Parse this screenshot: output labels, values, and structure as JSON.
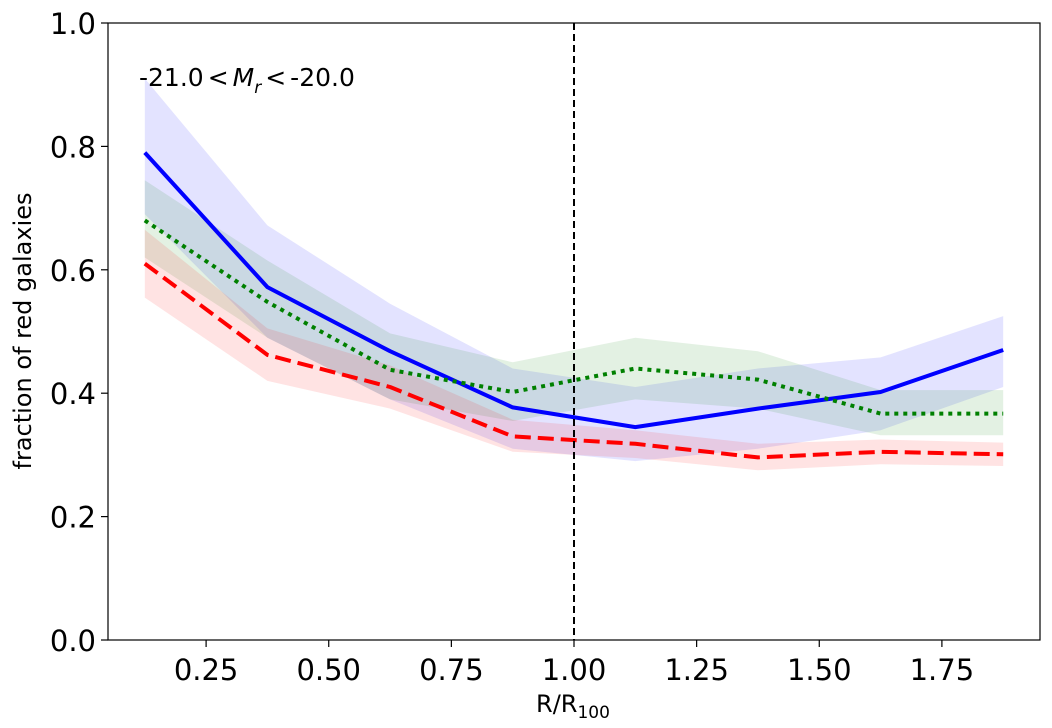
{
  "chart_data": {
    "type": "line",
    "title": "",
    "xlabel_main": "R/R",
    "xlabel_sub": "100",
    "ylabel": "fraction of red galaxies",
    "xlim": [
      0.05,
      1.95
    ],
    "ylim": [
      0.0,
      1.0
    ],
    "xticks": [
      0.25,
      0.5,
      0.75,
      1.0,
      1.25,
      1.5,
      1.75
    ],
    "xtick_labels": [
      "0.25",
      "0.50",
      "0.75",
      "1.00",
      "1.25",
      "1.50",
      "1.75"
    ],
    "yticks": [
      0.0,
      0.2,
      0.4,
      0.6,
      0.8,
      1.0
    ],
    "ytick_labels": [
      "0.0",
      "0.2",
      "0.4",
      "0.6",
      "0.8",
      "1.0"
    ],
    "annotation": {
      "prefix": "-21.0",
      "lt1": "<",
      "var": "M",
      "sub": "r",
      "lt2": "<",
      "suffix": "-20.0"
    },
    "vline": {
      "x": 1.0,
      "style": "dashed",
      "color": "#000000"
    },
    "x": [
      0.125,
      0.375,
      0.625,
      0.875,
      1.125,
      1.375,
      1.625,
      1.875
    ],
    "series": [
      {
        "name": "blue",
        "color": "#0000ff",
        "band_color": "#0000ff",
        "style": "solid",
        "values": [
          0.79,
          0.572,
          0.468,
          0.377,
          0.345,
          0.375,
          0.402,
          0.47
        ],
        "lower": [
          0.69,
          0.49,
          0.39,
          0.31,
          0.29,
          0.31,
          0.34,
          0.41
        ],
        "upper": [
          0.91,
          0.672,
          0.545,
          0.44,
          0.41,
          0.44,
          0.458,
          0.525
        ]
      },
      {
        "name": "green",
        "color": "#008000",
        "band_color": "#008000",
        "style": "dotted",
        "values": [
          0.68,
          0.548,
          0.438,
          0.402,
          0.44,
          0.422,
          0.367,
          0.367
        ],
        "lower": [
          0.62,
          0.49,
          0.39,
          0.355,
          0.39,
          0.375,
          0.332,
          0.332
        ],
        "upper": [
          0.745,
          0.615,
          0.497,
          0.45,
          0.49,
          0.468,
          0.405,
          0.405
        ]
      },
      {
        "name": "red",
        "color": "#ff0000",
        "band_color": "#ff0000",
        "style": "dashed",
        "values": [
          0.61,
          0.462,
          0.41,
          0.33,
          0.318,
          0.296,
          0.305,
          0.301
        ],
        "lower": [
          0.555,
          0.42,
          0.375,
          0.305,
          0.295,
          0.275,
          0.285,
          0.282
        ],
        "upper": [
          0.665,
          0.505,
          0.445,
          0.357,
          0.34,
          0.318,
          0.325,
          0.32
        ]
      }
    ]
  }
}
